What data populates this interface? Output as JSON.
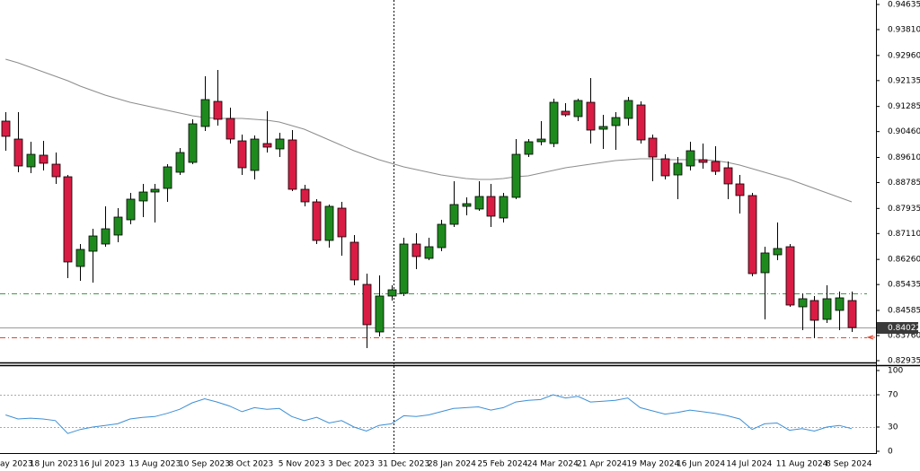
{
  "chart_data": {
    "type": "candlestick",
    "categories": [
      "ay 2023",
      null,
      null,
      null,
      "18 Jun 2023",
      null,
      null,
      null,
      "16 Jul 2023",
      null,
      null,
      null,
      "13 Aug 2023",
      null,
      null,
      null,
      "10 Sep 2023",
      null,
      null,
      null,
      "8 Oct 2023",
      null,
      null,
      null,
      "5 Nov 2023",
      null,
      null,
      null,
      "3 Dec 2023",
      null,
      null,
      null,
      "31 Dec 2023",
      null,
      null,
      null,
      "28 Jan 2024",
      null,
      null,
      null,
      "25 Feb 2024",
      null,
      null,
      null,
      "24 Mar 2024",
      null,
      null,
      null,
      "21 Apr 2024",
      null,
      null,
      null,
      "19 May 2024",
      null,
      null,
      null,
      "16 Jun 2024",
      null,
      null,
      null,
      "14 Jul 2024",
      null,
      null,
      null,
      "11 Aug 2024",
      null,
      null,
      null,
      "8 Sep 2024",
      null
    ],
    "open": [
      null,
      0.90804,
      0.90214,
      0.89301,
      0.89684,
      0.89389,
      0.88976,
      0.86029,
      0.8653,
      0.86766,
      0.87061,
      0.87562,
      0.88181,
      0.88475,
      0.88593,
      0.89124,
      0.89448,
      0.90627,
      0.91452,
      0.90892,
      0.90155,
      0.89183,
      0.90067,
      0.8989,
      0.90185,
      0.88564,
      0.88151,
      0.86884,
      0.87945,
      0.86825,
      0.8544,
      0.83878,
      0.85057,
      0.85145,
      0.86766,
      0.86295,
      0.86648,
      0.87414,
      0.88004,
      0.87916,
      0.88328,
      0.87621,
      0.88299,
      0.89713,
      0.90126,
      0.90067,
      0.91128,
      0.90951,
      0.91422,
      0.90538,
      0.90656,
      0.90892,
      0.91334,
      0.90244,
      0.89566,
      0.89035,
      0.8933,
      0.89536,
      0.89477,
      0.89271,
      0.88741,
      0.88358,
      0.85823,
      0.86413,
      0.86678,
      0.84703,
      0.8491,
      0.84291,
      0.84586,
      0.8491
    ],
    "high": [
      null,
      0.91098,
      0.91098,
      0.90126,
      0.90155,
      0.89772,
      0.89035,
      0.86766,
      0.87267,
      0.88004,
      0.87945,
      0.88446,
      0.88741,
      0.88741,
      0.89389,
      0.89919,
      0.90863,
      0.92277,
      0.92483,
      0.91246,
      0.90362,
      0.90332,
      0.91128,
      0.9042,
      0.90509,
      0.88711,
      0.8824,
      0.88063,
      0.88151,
      0.87061,
      0.85794,
      0.85735,
      0.85411,
      0.86972,
      0.8712,
      0.86972,
      0.87562,
      0.88829,
      0.88299,
      0.88829,
      0.88741,
      0.88446,
      0.90214,
      0.90214,
      0.90804,
      0.9154,
      0.91393,
      0.9154,
      0.92218,
      0.9101,
      0.91098,
      0.91599,
      0.91452,
      0.90362,
      0.89713,
      0.89625,
      0.90126,
      0.90067,
      0.89978,
      0.89477,
      0.89035,
      0.88446,
      0.86678,
      0.87473,
      0.86766,
      0.85145,
      0.85057,
      0.85411,
      0.85204,
      0.85204
    ],
    "low": [
      null,
      0.89831,
      0.89124,
      0.89094,
      0.89183,
      0.88741,
      0.85646,
      0.85558,
      0.85499,
      0.86678,
      0.86825,
      0.87414,
      0.8765,
      0.87473,
      0.88151,
      0.89035,
      0.89389,
      0.90479,
      0.90656,
      0.90067,
      0.89035,
      0.88888,
      0.89772,
      0.89625,
      0.88505,
      0.88004,
      0.86766,
      0.86648,
      0.86383,
      0.85411,
      0.83348,
      0.83731,
      0.8491,
      0.85057,
      0.85941,
      0.86236,
      0.8653,
      0.87326,
      0.87709,
      0.87857,
      0.87326,
      0.87473,
      0.8824,
      0.89625,
      0.90008,
      0.89949,
      0.90951,
      0.90804,
      0.90067,
      0.8989,
      0.89861,
      0.90656,
      0.90067,
      0.88829,
      0.88888,
      0.8824,
      0.89183,
      0.89242,
      0.89035,
      0.8824,
      0.87768,
      0.85705,
      0.84291,
      0.86236,
      0.84703,
      0.83937,
      0.83672,
      0.84173,
      0.83937,
      0.83878
    ],
    "close": [
      null,
      0.90303,
      0.8933,
      0.89713,
      0.89419,
      0.88976,
      0.86177,
      0.86589,
      0.87031,
      0.87267,
      0.8765,
      0.8824,
      0.88475,
      0.88564,
      0.89301,
      0.89772,
      0.90715,
      0.91511,
      0.90863,
      0.90214,
      0.89271,
      0.90214,
      0.89949,
      0.90214,
      0.88564,
      0.88151,
      0.86884,
      0.88004,
      0.87002,
      0.85587,
      0.84114,
      0.85057,
      0.85263,
      0.86766,
      0.86354,
      0.86678,
      0.87414,
      0.88063,
      0.88092,
      0.88328,
      0.8768,
      0.88328,
      0.89713,
      0.90126,
      0.90214,
      0.91422,
      0.9101,
      0.91481,
      0.90509,
      0.90627,
      0.90921,
      0.91481,
      0.90185,
      0.89625,
      0.89006,
      0.89419,
      0.89831,
      0.89448,
      0.89153,
      0.88741,
      0.88358,
      0.85794,
      0.86472,
      0.86619,
      0.84762,
      0.84969,
      0.84261,
      0.84969,
      0.84998,
      0.84022
    ],
    "up_color": "#1e8a1e",
    "down_color": "#d91c44",
    "moving_average": {
      "color": "#8c8c8c",
      "values": [
        null,
        0.92837,
        0.92719,
        0.92572,
        0.92424,
        0.92277,
        0.9213,
        0.91953,
        0.91806,
        0.91658,
        0.9154,
        0.91422,
        0.91334,
        0.91246,
        0.91157,
        0.91069,
        0.9098,
        0.90921,
        0.90892,
        0.90892,
        0.90892,
        0.90863,
        0.90833,
        0.90774,
        0.90656,
        0.90538,
        0.90362,
        0.90185,
        0.90008,
        0.89831,
        0.89684,
        0.89536,
        0.89419,
        0.89301,
        0.89212,
        0.89124,
        0.89035,
        0.88976,
        0.88918,
        0.88888,
        0.88888,
        0.88918,
        0.88976,
        0.89006,
        0.89094,
        0.89183,
        0.89271,
        0.8933,
        0.89389,
        0.89448,
        0.89507,
        0.89536,
        0.89566,
        0.89566,
        0.89536,
        0.89536,
        0.89536,
        0.89536,
        0.89507,
        0.89448,
        0.8936,
        0.89242,
        0.89124,
        0.89006,
        0.88888,
        0.88741,
        0.88593,
        0.88446,
        0.88299,
        0.88151
      ]
    },
    "levels": [
      {
        "value": 0.85145,
        "color": "#3f9a46"
      },
      {
        "value": 0.83701,
        "color": "#e2452c"
      }
    ],
    "last_price": 0.84022,
    "ylim": [
      0.82876,
      0.94782
    ],
    "yticks": [
      0.94635,
      {
        "value": 0.9381,
        "label": "0.93810"
      },
      {
        "value": 0.9296,
        "label": "0.92960"
      },
      0.92135,
      0.91285,
      {
        "value": 0.9046,
        "label": "0.90460"
      },
      {
        "value": 0.8961,
        "label": "0.89610"
      },
      0.88785,
      0.87935,
      {
        "value": 0.8711,
        "label": "0.87110"
      },
      {
        "value": 0.8626,
        "label": "0.86260"
      },
      0.85435,
      0.84585,
      {
        "value": 0.8376,
        "label": "0.83760"
      },
      0.82935
    ],
    "rsi": {
      "color": "#3d8fd6",
      "ylim": [
        0,
        100
      ],
      "yticks": [
        100,
        70,
        30,
        0
      ],
      "levels": [
        70,
        30
      ],
      "values": [
        null,
        45,
        40,
        41,
        40,
        38,
        22,
        27,
        30,
        32,
        34,
        40,
        42,
        43,
        47,
        52,
        60,
        65,
        61,
        56,
        49,
        54,
        52,
        53,
        43,
        38,
        42,
        35,
        38,
        30,
        25,
        32,
        34,
        44,
        43,
        45,
        49,
        53,
        54,
        55,
        51,
        54,
        61,
        63,
        64,
        70,
        66,
        68,
        61,
        62,
        63,
        66,
        54,
        50,
        46,
        48,
        51,
        49,
        47,
        44,
        40,
        27,
        34,
        35,
        26,
        28,
        25,
        30,
        32,
        28
      ]
    }
  }
}
